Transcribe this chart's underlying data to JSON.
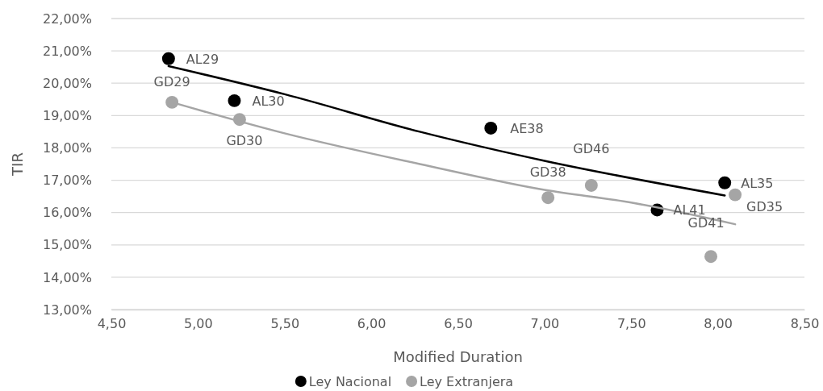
{
  "chart_data": {
    "type": "scatter",
    "xlabel": "Modified Duration",
    "ylabel": "TIR",
    "xlim": [
      4.5,
      8.5
    ],
    "ylim": [
      13,
      22
    ],
    "xticks": [
      {
        "value": 4.5,
        "label": "4,50"
      },
      {
        "value": 5,
        "label": "5,00"
      },
      {
        "value": 5.5,
        "label": "5,50"
      },
      {
        "value": 6,
        "label": "6,00"
      },
      {
        "value": 6.5,
        "label": "6,50"
      },
      {
        "value": 7,
        "label": "7,00"
      },
      {
        "value": 7.5,
        "label": "7,50"
      },
      {
        "value": 8,
        "label": "8,00"
      },
      {
        "value": 8.5,
        "label": "8,50"
      }
    ],
    "yticks": [
      {
        "value": 13,
        "label": "13,00%"
      },
      {
        "value": 14,
        "label": "14,00%"
      },
      {
        "value": 15,
        "label": "15,00%"
      },
      {
        "value": 16,
        "label": "16,00%"
      },
      {
        "value": 17,
        "label": "17,00%"
      },
      {
        "value": 18,
        "label": "18,00%"
      },
      {
        "value": 19,
        "label": "19,00%"
      },
      {
        "value": 20,
        "label": "20,00%"
      },
      {
        "value": 21,
        "label": "21,00%"
      },
      {
        "value": 22,
        "label": "22,00%"
      }
    ],
    "grid": "y",
    "legend": "bottom",
    "marker": "circle",
    "series": [
      {
        "name": "Ley Nacional",
        "color": "#000000",
        "x": [
          4.83,
          5.21,
          6.69,
          8.04,
          7.65
        ],
        "values": [
          20.76,
          19.46,
          18.61,
          16.92,
          16.08
        ]
      },
      {
        "name": "Ley Extranjera",
        "color": "#a5a5a5",
        "x": [
          4.85,
          5.24,
          7.02,
          7.27,
          8.1,
          7.96
        ],
        "values": [
          19.41,
          18.88,
          16.46,
          16.84,
          16.55,
          14.64
        ]
      },
      {
        "type": "line",
        "color": "#000000",
        "marker": "none",
        "x": [
          4.83,
          5.5,
          6.28,
          7.0,
          8.04
        ],
        "values": [
          20.53,
          19.66,
          18.5,
          17.6,
          16.53
        ]
      },
      {
        "type": "line",
        "color": "#a5a5a5",
        "marker": "none",
        "x": [
          4.85,
          5.5,
          6.28,
          7.0,
          7.5,
          8.1
        ],
        "values": [
          19.41,
          18.45,
          17.5,
          16.7,
          16.31,
          15.64
        ]
      }
    ],
    "annotations": [
      {
        "text": "AL29",
        "x": 4.83,
        "y": 20.76
      },
      {
        "text": "AL30",
        "x": 5.21,
        "y": 19.46
      },
      {
        "text": "AE38",
        "x": 6.69,
        "y": 18.61
      },
      {
        "text": "AL35",
        "x": 8.04,
        "y": 16.92
      },
      {
        "text": "AL41",
        "x": 7.65,
        "y": 16.08
      },
      {
        "text": "GD29",
        "x": 4.85,
        "y": 19.41
      },
      {
        "text": "GD30",
        "x": 5.24,
        "y": 18.88
      },
      {
        "text": "GD38",
        "x": 7.02,
        "y": 16.46
      },
      {
        "text": "GD46",
        "x": 7.27,
        "y": 16.84
      },
      {
        "text": "GD35",
        "x": 8.1,
        "y": 16.55
      },
      {
        "text": "GD41",
        "x": 7.96,
        "y": 14.64
      }
    ]
  }
}
